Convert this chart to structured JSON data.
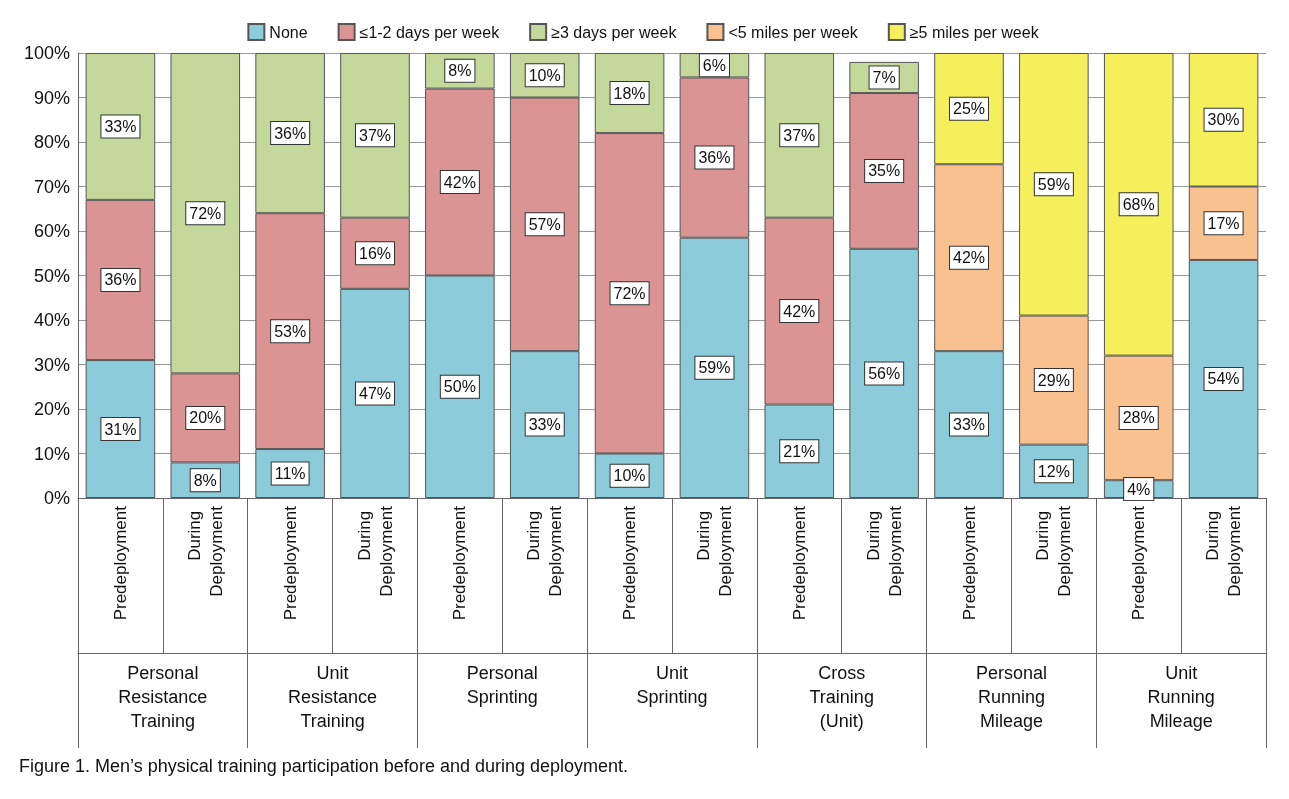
{
  "chart_data": {
    "type": "bar",
    "stacked": true,
    "title": "Figure 1. Men’s physical training participation before and during deployment.",
    "categories": [
      "Predeployment",
      "During Deployment",
      "Predeployment",
      "During Deployment",
      "Predeployment",
      "During Deployment",
      "Predeployment",
      "During Deployment",
      "Predeployment",
      "During Deployment",
      "Predeployment",
      "During Deployment",
      "Predeployment",
      "During Deployment"
    ],
    "annotations": [
      "Personal\nResistance\nTraining",
      "Unit\nResistance\nTraining",
      "Personal\nSprinting",
      "Unit\nSprinting",
      "Cross\nTraining\n(Unit)",
      "Personal\nRunning\nMileage",
      "Unit\nRunning\nMileage"
    ],
    "series": [
      {
        "name": "None",
        "color": "#8ccbd9",
        "values": [
          31,
          8,
          11,
          47,
          50,
          33,
          10,
          58.5,
          21,
          56,
          33,
          12,
          4,
          53.5
        ],
        "value_labels": [
          "31%",
          "8%",
          "11%",
          "47%",
          "50%",
          "33%",
          "10%",
          "59%",
          "21%",
          "56%",
          "33%",
          "12%",
          "4%",
          "54%"
        ]
      },
      {
        "name": "≤1-2 days per week",
        "color": "#d99493",
        "values": [
          36,
          20,
          53,
          16,
          42,
          57,
          72,
          36,
          42,
          35,
          null,
          null,
          null,
          null
        ],
        "value_labels": [
          "36%",
          "20%",
          "53%",
          "16%",
          "42%",
          "57%",
          "72%",
          "36%",
          "42%",
          "35%",
          null,
          null,
          null,
          null
        ]
      },
      {
        "name": "≥3 days per week",
        "color": "#c4d89c",
        "values": [
          33,
          72,
          36,
          37,
          8,
          10,
          18,
          5.5,
          37,
          7,
          null,
          null,
          null,
          null
        ],
        "value_labels": [
          "33%",
          "72%",
          "36%",
          "37%",
          "8%",
          "10%",
          "18%",
          "6%",
          "37%",
          "7%",
          null,
          null,
          null,
          null
        ]
      },
      {
        "name": "<5 miles per week",
        "color": "#f9c18f",
        "values": [
          null,
          null,
          null,
          null,
          null,
          null,
          null,
          null,
          null,
          null,
          42,
          29,
          28,
          16.5
        ],
        "value_labels": [
          null,
          null,
          null,
          null,
          null,
          null,
          null,
          null,
          null,
          null,
          "42%",
          "29%",
          "28%",
          "17%"
        ]
      },
      {
        "name": "≥5 miles per week",
        "color": "#f5ef5c",
        "values": [
          null,
          null,
          null,
          null,
          null,
          null,
          null,
          null,
          null,
          null,
          25,
          59,
          68,
          30
        ],
        "value_labels": [
          null,
          null,
          null,
          null,
          null,
          null,
          null,
          null,
          null,
          null,
          "25%",
          "59%",
          "68%",
          "30%"
        ]
      }
    ],
    "ylim": [
      0,
      100
    ],
    "yticks": [
      {
        "value": 0,
        "label": "0%"
      },
      {
        "value": 10,
        "label": "10%"
      },
      {
        "value": 20,
        "label": "20%"
      },
      {
        "value": 30,
        "label": "30%"
      },
      {
        "value": 40,
        "label": "40%"
      },
      {
        "value": 50,
        "label": "50%"
      },
      {
        "value": 60,
        "label": "60%"
      },
      {
        "value": 70,
        "label": "70%"
      },
      {
        "value": 80,
        "label": "80%"
      },
      {
        "value": 90,
        "label": "90%"
      },
      {
        "value": 100,
        "label": "100%"
      }
    ],
    "grid": "y",
    "legend": "top"
  }
}
